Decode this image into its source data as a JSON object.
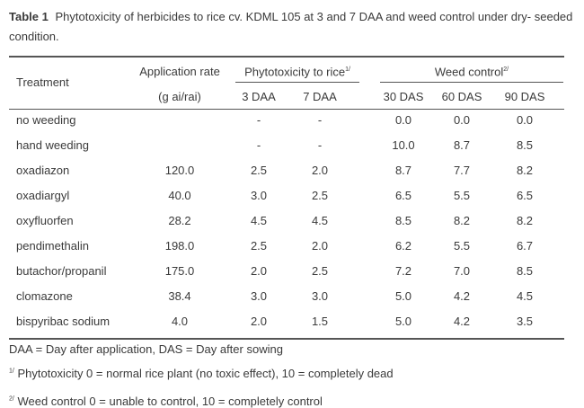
{
  "caption": {
    "label": "Table 1",
    "text": "Phytotoxicity of herbicides to rice cv. KDML 105 at 3 and 7 DAA and weed control under dry- seeded condition."
  },
  "headers": {
    "treatment": "Treatment",
    "rate_line1": "Application rate",
    "rate_line2": "(g ai/rai)",
    "phyto_group": "Phytotoxicity to rice",
    "phyto_sup": "1/",
    "weed_group": "Weed control",
    "weed_sup": "2/",
    "daa3": "3 DAA",
    "daa7": "7 DAA",
    "das30": "30 DAS",
    "das60": "60 DAS",
    "das90": "90 DAS"
  },
  "rows": [
    {
      "treatment": "no weeding",
      "rate": "",
      "daa3": "-",
      "daa7": "-",
      "das30": "0.0",
      "das60": "0.0",
      "das90": "0.0"
    },
    {
      "treatment": "hand weeding",
      "rate": "",
      "daa3": "-",
      "daa7": "-",
      "das30": "10.0",
      "das60": "8.7",
      "das90": "8.5"
    },
    {
      "treatment": "oxadiazon",
      "rate": "120.0",
      "daa3": "2.5",
      "daa7": "2.0",
      "das30": "8.7",
      "das60": "7.7",
      "das90": "8.2"
    },
    {
      "treatment": "oxadiargyl",
      "rate": "40.0",
      "daa3": "3.0",
      "daa7": "2.5",
      "das30": "6.5",
      "das60": "5.5",
      "das90": "6.5"
    },
    {
      "treatment": "oxyfluorfen",
      "rate": "28.2",
      "daa3": "4.5",
      "daa7": "4.5",
      "das30": "8.5",
      "das60": "8.2",
      "das90": "8.2"
    },
    {
      "treatment": "pendimethalin",
      "rate": "198.0",
      "daa3": "2.5",
      "daa7": "2.0",
      "das30": "6.2",
      "das60": "5.5",
      "das90": "6.7"
    },
    {
      "treatment": "butachor/propanil",
      "rate": "175.0",
      "daa3": "2.0",
      "daa7": "2.5",
      "das30": "7.2",
      "das60": "7.0",
      "das90": "8.5"
    },
    {
      "treatment": "clomazone",
      "rate": "38.4",
      "daa3": "3.0",
      "daa7": "3.0",
      "das30": "5.0",
      "das60": "4.2",
      "das90": "4.5"
    },
    {
      "treatment": "bispyribac sodium",
      "rate": "4.0",
      "daa3": "2.0",
      "daa7": "1.5",
      "das30": "5.0",
      "das60": "4.2",
      "das90": "3.5"
    }
  ],
  "footnotes": {
    "abbrev": "DAA = Day after application, DAS = Day after sowing",
    "note1_sup": "1/",
    "note1": "Phytotoxicity 0 = normal rice plant (no toxic effect), 10 = completely dead",
    "note2_sup": "2/",
    "note2": "Weed control 0 = unable to control, 10 = completely control"
  }
}
